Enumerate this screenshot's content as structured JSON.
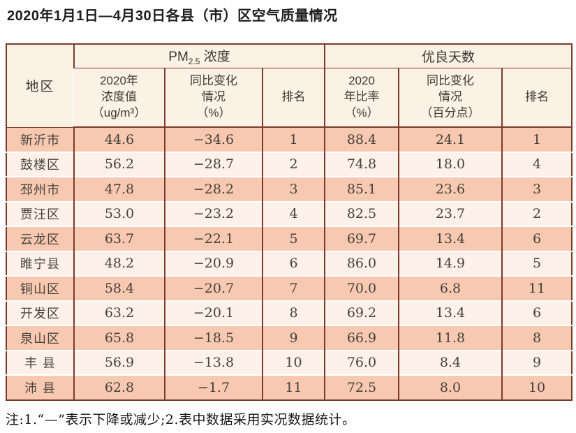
{
  "page": {
    "title": "2020年1月1日—4月30日各县（市）区空气质量情况",
    "footnote": "注:1.“—”表示下降或减少;2.表中数据采用实况数据统计。"
  },
  "colors": {
    "border": "#7b3b2b",
    "header_bg": "#fbf1e5",
    "row_odd_bg": "#f8c9b1",
    "row_even_bg": "#fdf1e9",
    "text": "#46403a"
  },
  "table": {
    "region_header": "地区",
    "pm_group": {
      "prefix": "PM",
      "sub": "2.5",
      "suffix": " 浓度"
    },
    "good_group": "优良天数",
    "subheaders": [
      "2020年\n浓度值\n（ug/m³）",
      "同比变化\n情况\n（%）",
      "排名",
      "2020\n年比率\n（%）",
      "同比变化\n情况\n（百分点）",
      "排名"
    ],
    "rows": [
      {
        "region": "新沂市",
        "values": [
          "44.6",
          "−34.6",
          "1",
          "88.4",
          "24.1",
          "1"
        ]
      },
      {
        "region": "鼓楼区",
        "values": [
          "56.2",
          "−28.7",
          "2",
          "74.8",
          "18.0",
          "4"
        ]
      },
      {
        "region": "邳州市",
        "values": [
          "47.8",
          "−28.2",
          "3",
          "85.1",
          "23.6",
          "3"
        ]
      },
      {
        "region": "贾汪区",
        "values": [
          "53.0",
          "−23.2",
          "4",
          "82.5",
          "23.7",
          "2"
        ]
      },
      {
        "region": "云龙区",
        "values": [
          "63.7",
          "−22.1",
          "5",
          "69.7",
          "13.4",
          "6"
        ]
      },
      {
        "region": "睢宁县",
        "values": [
          "48.2",
          "−20.9",
          "6",
          "86.0",
          "14.9",
          "5"
        ]
      },
      {
        "region": "铜山区",
        "values": [
          "58.4",
          "−20.7",
          "7",
          "70.0",
          "6.8",
          "11"
        ]
      },
      {
        "region": "开发区",
        "values": [
          "63.2",
          "−20.1",
          "8",
          "69.2",
          "13.4",
          "6"
        ]
      },
      {
        "region": "泉山区",
        "values": [
          "65.8",
          "−18.5",
          "9",
          "66.9",
          "11.8",
          "8"
        ]
      },
      {
        "region": "丰 县",
        "values": [
          "56.9",
          "−13.8",
          "10",
          "76.0",
          "8.4",
          "9"
        ]
      },
      {
        "region": "沛 县",
        "values": [
          "62.8",
          "−1.7",
          "11",
          "72.5",
          "8.0",
          "10"
        ]
      }
    ]
  }
}
